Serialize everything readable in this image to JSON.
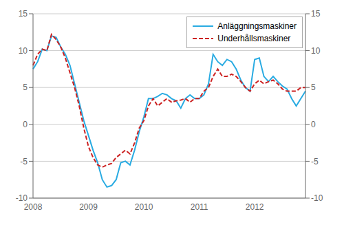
{
  "chart_data": {
    "type": "line",
    "categories": [
      "2008",
      null,
      null,
      null,
      null,
      null,
      null,
      null,
      null,
      null,
      null,
      null,
      "2009",
      null,
      null,
      null,
      null,
      null,
      null,
      null,
      null,
      null,
      null,
      null,
      "2010",
      null,
      null,
      null,
      null,
      null,
      null,
      null,
      null,
      null,
      null,
      null,
      "2011",
      null,
      null,
      null,
      null,
      null,
      null,
      null,
      null,
      null,
      null,
      null,
      "2012",
      null,
      null,
      null,
      null,
      null,
      null,
      null,
      null,
      null,
      null,
      null
    ],
    "series": [
      {
        "name": "Anläggningsmaskiner",
        "color": "#29ABE2",
        "line_style": "solid",
        "values": [
          7.5,
          8.5,
          10.2,
          10.0,
          12.0,
          11.8,
          10.5,
          9.5,
          8.0,
          5.5,
          3.0,
          0.5,
          -1.5,
          -3.5,
          -5.2,
          -7.5,
          -8.5,
          -8.3,
          -7.5,
          -5.2,
          -5.0,
          -5.5,
          -3.5,
          -1.0,
          1.0,
          3.5,
          3.5,
          3.8,
          4.2,
          4.0,
          3.5,
          3.2,
          2.2,
          3.5,
          4.0,
          3.5,
          3.5,
          4.0,
          5.5,
          9.5,
          8.5,
          8.0,
          8.8,
          8.5,
          7.5,
          6.0,
          5.0,
          4.5,
          8.8,
          9.0,
          6.5,
          5.8,
          6.5,
          5.8,
          5.2,
          4.8,
          3.5,
          2.5,
          3.5,
          4.5
        ]
      },
      {
        "name": "Underhållsmaskiner",
        "color": "#CC2222",
        "line_style": "dashed",
        "values": [
          8.0,
          9.5,
          10.2,
          10.0,
          12.2,
          11.5,
          10.5,
          9.0,
          7.0,
          5.0,
          2.5,
          -0.5,
          -3.0,
          -4.5,
          -5.5,
          -5.8,
          -5.5,
          -5.3,
          -4.5,
          -4.0,
          -3.5,
          -4.0,
          -2.5,
          -0.5,
          0.5,
          2.5,
          3.5,
          2.5,
          3.0,
          3.5,
          3.0,
          3.2,
          3.3,
          3.5,
          3.0,
          3.5,
          3.5,
          4.5,
          5.0,
          6.5,
          7.5,
          6.5,
          6.5,
          6.8,
          6.5,
          5.8,
          5.0,
          4.5,
          5.5,
          6.0,
          5.5,
          5.8,
          6.0,
          5.5,
          4.8,
          4.5,
          4.5,
          4.5,
          5.0,
          5.0
        ]
      }
    ],
    "ylim": [
      -10,
      15
    ],
    "yticks": [
      -10,
      -5,
      0,
      5,
      10,
      15
    ],
    "y2lim": [
      -10,
      15
    ],
    "y2ticks": [
      -10,
      -5,
      0,
      5,
      10,
      15
    ],
    "grid": true,
    "legend": "upper right"
  }
}
